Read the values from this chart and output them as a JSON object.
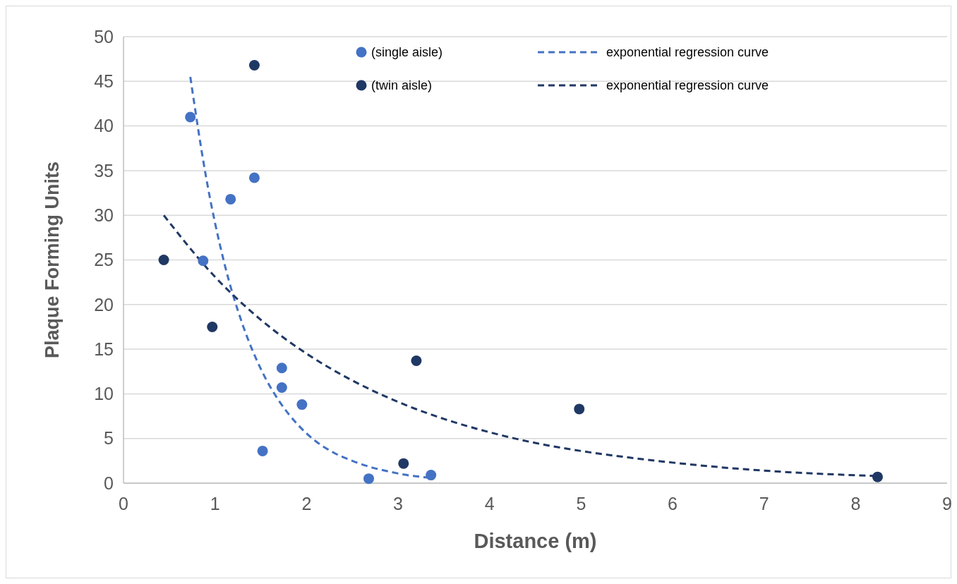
{
  "chart_data": {
    "type": "scatter",
    "xlabel": "Distance (m)",
    "ylabel": "Plaque Forming Units",
    "xlim": [
      0,
      9
    ],
    "xticks": [
      0,
      1,
      2,
      3,
      4,
      5,
      6,
      7,
      8,
      9
    ],
    "ylim": [
      0,
      50
    ],
    "yticks": [
      0,
      5,
      10,
      15,
      20,
      25,
      30,
      35,
      40,
      45,
      50
    ],
    "grid": "y",
    "legend": "top right",
    "marker": "circle",
    "series": [
      {
        "name": "(single aisle)",
        "color": "#4472c4",
        "x": [
          0.73,
          0.87,
          1.17,
          1.43,
          1.52,
          1.73,
          1.73,
          1.95,
          2.68,
          3.36
        ],
        "values": [
          41.0,
          24.9,
          31.8,
          34.2,
          3.6,
          12.9,
          10.7,
          8.8,
          0.5,
          0.9
        ]
      },
      {
        "name": "(twin aisle)",
        "color": "#203864",
        "x": [
          0.44,
          0.97,
          1.43,
          3.06,
          3.2,
          4.98,
          8.24
        ],
        "values": [
          25.0,
          17.5,
          46.8,
          2.2,
          13.7,
          8.3,
          0.7
        ]
      },
      {
        "name": "exponential regression curve",
        "type": "line",
        "marker": "none",
        "line_style": "dashed",
        "color": "#4472c4",
        "x": [
          0.73,
          0.9,
          1.1,
          1.3,
          1.5,
          1.7,
          1.9,
          2.1,
          2.3,
          2.5,
          2.7,
          2.9,
          3.1,
          3.36
        ],
        "values": [
          45.5,
          34.4,
          24.7,
          17.8,
          12.8,
          9.2,
          6.6,
          4.7,
          3.4,
          2.5,
          1.8,
          1.3,
          0.9,
          0.6
        ]
      },
      {
        "name": "exponential regression curve",
        "type": "line",
        "marker": "none",
        "line_style": "dashed",
        "color": "#203864",
        "x": [
          0.44,
          1,
          1.5,
          2,
          2.5,
          3,
          3.5,
          4,
          4.5,
          5,
          5.5,
          6,
          6.5,
          7,
          7.5,
          8.24
        ],
        "values": [
          30.0,
          23.1,
          18.3,
          14.5,
          11.5,
          9.1,
          7.2,
          5.7,
          4.5,
          3.6,
          2.9,
          2.3,
          1.8,
          1.4,
          1.1,
          0.8
        ]
      }
    ]
  }
}
